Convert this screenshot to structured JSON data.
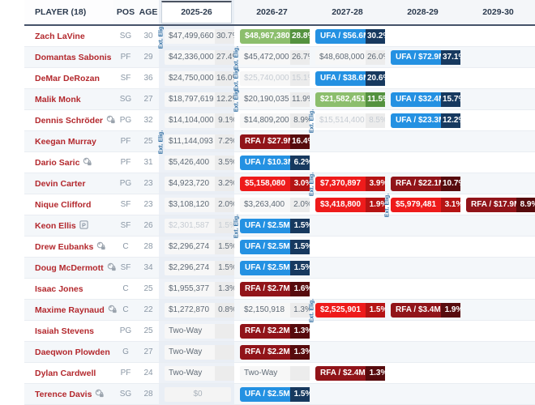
{
  "table": {
    "player_header": "PLAYER (18)",
    "pos_header": "POS",
    "age_header": "AGE",
    "seasons": [
      "2025-26",
      "2026-27",
      "2027-28",
      "2028-29",
      "2029-30"
    ],
    "selected_season": "2025-26",
    "ext_elig_label": "Ext. Elig.",
    "colors": {
      "player_name": "#b3282d",
      "player_option": "#8cbe6d",
      "player_option_pct": "#54923f",
      "team_option": "#ee1b1b",
      "team_option_pct": "#b51414",
      "ufa": "#2491e2",
      "ufa_pct": "#17395f",
      "rfa": "#911419",
      "rfa_pct": "#570b0d",
      "ext_elig": "#2c6ba0"
    },
    "players": [
      {
        "name": "Zach LaVine",
        "icon": null,
        "pos": "SG",
        "age": "30",
        "ext_elig_before": "2025-26",
        "cells": {
          "2025-26": {
            "type": "cap",
            "value": "$47,499,660",
            "pct": "30.7%"
          },
          "2026-27": {
            "type": "po",
            "value": "$48,967,380",
            "pct": "28.8%"
          },
          "2027-28": {
            "type": "ufa",
            "value": "UFA / $56.6M",
            "pct": "30.2%"
          }
        }
      },
      {
        "name": "Domantas Sabonis",
        "icon": null,
        "pos": "PF",
        "age": "29",
        "ext_elig_before": "2026-27",
        "cells": {
          "2025-26": {
            "type": "cap",
            "value": "$42,336,000",
            "pct": "27.4%"
          },
          "2026-27": {
            "type": "cap",
            "value": "$45,472,000",
            "pct": "26.7%"
          },
          "2027-28": {
            "type": "cap",
            "value": "$48,608,000",
            "pct": "26.0%"
          },
          "2028-29": {
            "type": "ufa",
            "value": "UFA / $72.9M",
            "pct": "37.1%"
          }
        }
      },
      {
        "name": "DeMar DeRozan",
        "icon": null,
        "pos": "SF",
        "age": "36",
        "ext_elig_before": "2026-27",
        "cells": {
          "2025-26": {
            "type": "cap",
            "value": "$24,750,000",
            "pct": "16.0%"
          },
          "2026-27": {
            "type": "cap-muted",
            "value": "$25,740,000",
            "pct": "15.1%"
          },
          "2027-28": {
            "type": "ufa",
            "value": "UFA / $38.6M",
            "pct": "20.6%"
          }
        }
      },
      {
        "name": "Malik Monk",
        "icon": null,
        "pos": "SG",
        "age": "27",
        "ext_elig_before": "2026-27",
        "cells": {
          "2025-26": {
            "type": "cap",
            "value": "$18,797,619",
            "pct": "12.2%"
          },
          "2026-27": {
            "type": "cap",
            "value": "$20,190,035",
            "pct": "11.9%"
          },
          "2027-28": {
            "type": "po",
            "value": "$21,582,451",
            "pct": "11.5%"
          },
          "2028-29": {
            "type": "ufa",
            "value": "UFA / $32.4M",
            "pct": "15.7%"
          }
        }
      },
      {
        "name": "Dennis Schröder",
        "icon": "trade",
        "pos": "PG",
        "age": "32",
        "ext_elig_before": "2027-28",
        "cells": {
          "2025-26": {
            "type": "cap",
            "value": "$14,104,000",
            "pct": "9.1%"
          },
          "2026-27": {
            "type": "cap",
            "value": "$14,809,200",
            "pct": "8.9%"
          },
          "2027-28": {
            "type": "cap-muted",
            "value": "$15,514,400",
            "pct": "8.5%"
          },
          "2028-29": {
            "type": "ufa",
            "value": "UFA / $23.3M",
            "pct": "12.2%"
          }
        }
      },
      {
        "name": "Keegan Murray",
        "icon": null,
        "pos": "PF",
        "age": "25",
        "ext_elig_before": "2025-26",
        "cells": {
          "2025-26": {
            "type": "cap",
            "value": "$11,144,093",
            "pct": "7.2%"
          },
          "2026-27": {
            "type": "rfa",
            "value": "RFA / $27.9M",
            "pct": "16.4%"
          }
        }
      },
      {
        "name": "Dario Saric",
        "icon": "trade",
        "pos": "PF",
        "age": "31",
        "ext_elig_before": null,
        "cells": {
          "2025-26": {
            "type": "cap",
            "value": "$5,426,400",
            "pct": "3.5%"
          },
          "2026-27": {
            "type": "ufa",
            "value": "UFA / $10.3M",
            "pct": "6.2%"
          }
        }
      },
      {
        "name": "Devin Carter",
        "icon": null,
        "pos": "PG",
        "age": "23",
        "ext_elig_before": "2027-28",
        "cells": {
          "2025-26": {
            "type": "cap",
            "value": "$4,923,720",
            "pct": "3.2%"
          },
          "2026-27": {
            "type": "to",
            "value": "$5,158,080",
            "pct": "3.0%"
          },
          "2027-28": {
            "type": "to",
            "value": "$7,370,897",
            "pct": "3.9%"
          },
          "2028-29": {
            "type": "rfa",
            "value": "RFA / $22.1M",
            "pct": "10.7%"
          }
        }
      },
      {
        "name": "Nique Clifford",
        "icon": null,
        "pos": "SF",
        "age": "23",
        "ext_elig_before": "2028-29",
        "cells": {
          "2025-26": {
            "type": "cap",
            "value": "$3,108,120",
            "pct": "2.0%"
          },
          "2026-27": {
            "type": "cap",
            "value": "$3,263,400",
            "pct": "2.0%"
          },
          "2027-28": {
            "type": "to",
            "value": "$3,418,800",
            "pct": "1.9%"
          },
          "2028-29": {
            "type": "to",
            "value": "$5,979,481",
            "pct": "3.1%"
          },
          "2029-30": {
            "type": "rfa",
            "value": "RFA / $17.9M",
            "pct": "8.9%"
          }
        }
      },
      {
        "name": "Keon Ellis",
        "icon": "p",
        "pos": "SF",
        "age": "26",
        "ext_elig_before": "2026-27",
        "cells": {
          "2025-26": {
            "type": "cap-muted",
            "value": "$2,301,587",
            "pct": "1.5%"
          },
          "2026-27": {
            "type": "ufa",
            "value": "UFA / $2.5M",
            "pct": "1.5%"
          }
        }
      },
      {
        "name": "Drew Eubanks",
        "icon": "trade",
        "pos": "C",
        "age": "28",
        "ext_elig_before": null,
        "cells": {
          "2025-26": {
            "type": "cap",
            "value": "$2,296,274",
            "pct": "1.5%"
          },
          "2026-27": {
            "type": "ufa",
            "value": "UFA / $2.5M",
            "pct": "1.5%"
          }
        }
      },
      {
        "name": "Doug McDermott",
        "icon": "trade",
        "pos": "SF",
        "age": "34",
        "ext_elig_before": null,
        "cells": {
          "2025-26": {
            "type": "cap",
            "value": "$2,296,274",
            "pct": "1.5%"
          },
          "2026-27": {
            "type": "ufa",
            "value": "UFA / $2.5M",
            "pct": "1.5%"
          }
        }
      },
      {
        "name": "Isaac Jones",
        "icon": null,
        "pos": "C",
        "age": "25",
        "ext_elig_before": null,
        "cells": {
          "2025-26": {
            "type": "cap",
            "value": "$1,955,377",
            "pct": "1.3%"
          },
          "2026-27": {
            "type": "rfa",
            "value": "RFA / $2.7M",
            "pct": "1.6%"
          }
        }
      },
      {
        "name": "Maxime Raynaud",
        "icon": "trade",
        "pos": "C",
        "age": "22",
        "ext_elig_before": "2027-28",
        "cells": {
          "2025-26": {
            "type": "cap",
            "value": "$1,272,870",
            "pct": "0.8%"
          },
          "2026-27": {
            "type": "cap",
            "value": "$2,150,918",
            "pct": "1.3%"
          },
          "2027-28": {
            "type": "to",
            "value": "$2,525,901",
            "pct": "1.5%"
          },
          "2028-29": {
            "type": "rfa",
            "value": "RFA / $3.4M",
            "pct": "1.9%"
          }
        }
      },
      {
        "name": "Isaiah Stevens",
        "icon": null,
        "pos": "PG",
        "age": "25",
        "ext_elig_before": null,
        "cells": {
          "2025-26": {
            "type": "twoway",
            "value": "Two-Way",
            "pct": ""
          },
          "2026-27": {
            "type": "rfa",
            "value": "RFA / $2.2M",
            "pct": "1.3%"
          }
        }
      },
      {
        "name": "Daeqwon Plowden",
        "icon": null,
        "pos": "G",
        "age": "27",
        "ext_elig_before": null,
        "cells": {
          "2025-26": {
            "type": "twoway",
            "value": "Two-Way",
            "pct": ""
          },
          "2026-27": {
            "type": "rfa",
            "value": "RFA / $2.2M",
            "pct": "1.3%"
          }
        }
      },
      {
        "name": "Dylan Cardwell",
        "icon": null,
        "pos": "PF",
        "age": "24",
        "ext_elig_before": null,
        "cells": {
          "2025-26": {
            "type": "twoway",
            "value": "Two-Way",
            "pct": ""
          },
          "2026-27": {
            "type": "twoway",
            "value": "Two-Way",
            "pct": ""
          },
          "2027-28": {
            "type": "rfa",
            "value": "RFA / $2.4M",
            "pct": "1.3%"
          }
        }
      },
      {
        "name": "Terence Davis",
        "icon": "trade",
        "pos": "SG",
        "age": "28",
        "ext_elig_before": null,
        "cells": {
          "2025-26": {
            "type": "zero",
            "value": "$0",
            "pct": ""
          },
          "2026-27": {
            "type": "ufa",
            "value": "UFA / $2.5M",
            "pct": "1.5%"
          }
        }
      }
    ]
  }
}
